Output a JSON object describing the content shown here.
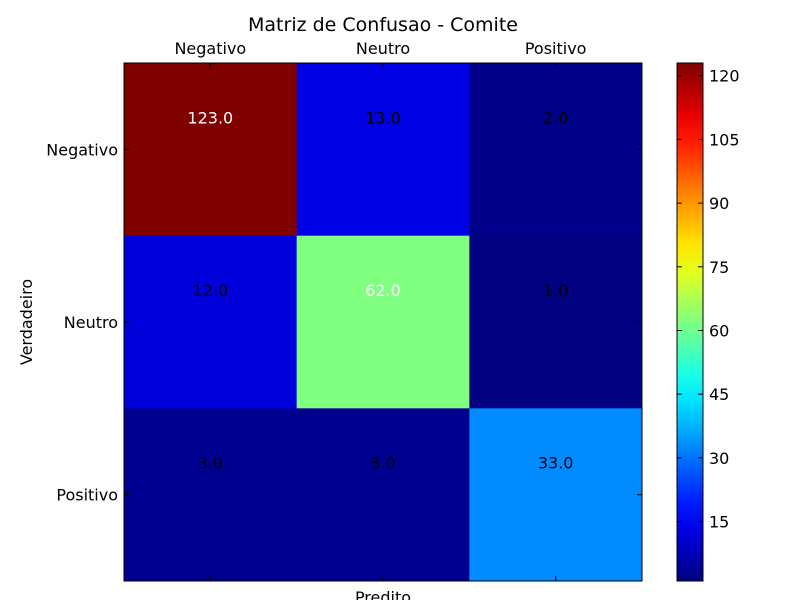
{
  "chart_data": {
    "type": "heatmap",
    "title": "Matriz de Confusao - Comite",
    "xlabel": "Predito",
    "ylabel": "Verdadeiro",
    "x_categories": [
      "Negativo",
      "Neutro",
      "Positivo"
    ],
    "y_categories": [
      "Negativo",
      "Neutro",
      "Positivo"
    ],
    "values": [
      [
        123.0,
        13.0,
        2.0
      ],
      [
        12.0,
        62.0,
        1.0
      ],
      [
        3.0,
        3.0,
        33.0
      ]
    ],
    "cell_labels": [
      [
        "123.0",
        "13.0",
        "2.0"
      ],
      [
        "12.0",
        "62.0",
        "1.0"
      ],
      [
        "3.0",
        "3.0",
        "33.0"
      ]
    ],
    "colormap": "jet",
    "color_range": [
      1,
      123
    ],
    "colorbar_ticks": [
      15,
      30,
      45,
      60,
      75,
      90,
      105,
      120
    ]
  }
}
